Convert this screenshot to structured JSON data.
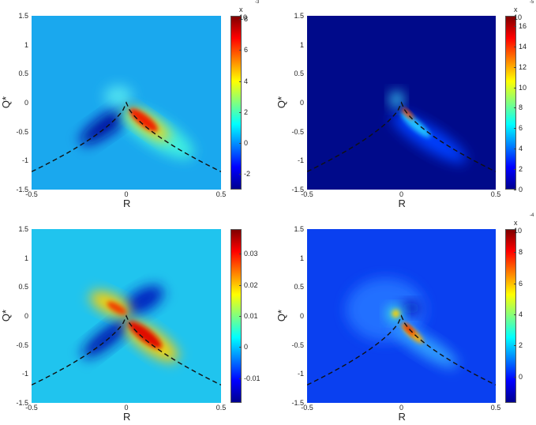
{
  "chart_data": [
    {
      "type": "heatmap",
      "panel": "top-left",
      "xlabel": "R",
      "ylabel": "Q*",
      "xlim": [
        -0.5,
        0.5
      ],
      "ylim": [
        -1.5,
        1.5
      ],
      "xticks": [
        "-0.5",
        "0",
        "0.5"
      ],
      "yticks": [
        "1.5",
        "1",
        "0.5",
        "0",
        "-0.5",
        "-1",
        "-1.5"
      ],
      "colorbar": {
        "multiplier": "x 10",
        "exponent": "-3",
        "ticks": [
          "8",
          "6",
          "4",
          "2",
          "0",
          "-2"
        ],
        "range": [
          -3,
          8.2
        ]
      },
      "annotation": "dashed Vieillefosse line",
      "features": "negative (blue) lobe along left branch, positive (red) lobe along right branch below origin"
    },
    {
      "type": "heatmap",
      "panel": "top-right",
      "xlabel": "R",
      "ylabel": "Q*",
      "xlim": [
        -0.5,
        0.5
      ],
      "ylim": [
        -1.5,
        1.5
      ],
      "xticks": [
        "-0.5",
        "0",
        "0.5"
      ],
      "yticks": [
        "1.5",
        "1",
        "0.5",
        "0",
        "-0.5",
        "-1",
        "-1.5"
      ],
      "colorbar": {
        "multiplier": "x 10",
        "exponent": "-5",
        "ticks": [
          "16",
          "14",
          "12",
          "10",
          "8",
          "6",
          "4",
          "2",
          "0"
        ],
        "range": [
          0,
          17
        ]
      },
      "annotation": "dashed Vieillefosse line",
      "features": "concentrated peak along right branch near origin"
    },
    {
      "type": "heatmap",
      "panel": "bottom-left",
      "xlabel": "R",
      "ylabel": "Q*",
      "xlim": [
        -0.5,
        0.5
      ],
      "ylim": [
        -1.5,
        1.5
      ],
      "xticks": [
        "-0.5",
        "0",
        "0.5"
      ],
      "yticks": [
        "1.5",
        "1",
        "0.5",
        "0",
        "-0.5",
        "-1",
        "-1.5"
      ],
      "colorbar": {
        "multiplier": "",
        "exponent": "",
        "ticks": [
          "0.03",
          "0.02",
          "0.01",
          "0",
          "-0.01"
        ],
        "range": [
          -0.018,
          0.038
        ]
      },
      "annotation": "dashed Vieillefosse line",
      "features": "quadrupole pattern: positive upper-left and lower-right, negative upper-right and lower-left"
    },
    {
      "type": "heatmap",
      "panel": "bottom-right",
      "xlabel": "R",
      "ylabel": "Q*",
      "xlim": [
        -0.5,
        0.5
      ],
      "ylim": [
        -1.5,
        1.5
      ],
      "xticks": [
        "-0.5",
        "0",
        "0.5"
      ],
      "yticks": [
        "1.5",
        "1",
        "0.5",
        "0",
        "-0.5",
        "-1",
        "-1.5"
      ],
      "colorbar": {
        "multiplier": "x 10",
        "exponent": "-4",
        "ticks": [
          "8",
          "6",
          "4",
          "2",
          "0"
        ],
        "range": [
          -1.7,
          9.5
        ]
      },
      "annotation": "dashed Vieillefosse line",
      "features": "peak along right branch near origin, secondary yellow spot at small negative R above origin"
    }
  ]
}
